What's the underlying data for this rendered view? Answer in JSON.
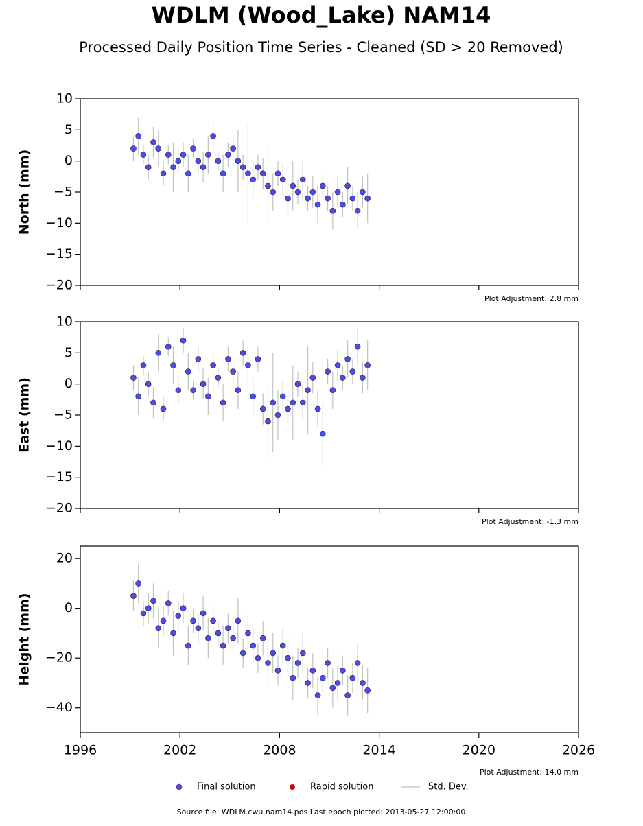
{
  "title": "WDLM (Wood_Lake) NAM14",
  "subtitle": "Processed Daily Position Time Series - Cleaned (SD > 20 Removed)",
  "legend": [
    {
      "name": "Final solution",
      "color": "#4b4bf0"
    },
    {
      "name": "Rapid solution",
      "color": "#dd0000"
    },
    {
      "name": "Std. Dev.",
      "color": "#cccccc"
    }
  ],
  "footer": "Source file: WDLM.cwu.nam14.pos  Last epoch plotted: 2013-05-27 12:00:00",
  "chart_data": [
    {
      "type": "scatter",
      "ylabel": "North (mm)",
      "annotation": "Plot Adjustment: 2.8 mm",
      "xlim": [
        1996,
        2026
      ],
      "ylim": [
        -20,
        10
      ],
      "yticks": [
        {
          "value": -20,
          "label": "−20"
        },
        {
          "value": -15,
          "label": "−15"
        },
        {
          "value": -10,
          "label": "−10"
        },
        {
          "value": -5,
          "label": "−5"
        },
        0,
        5,
        10
      ],
      "series": [
        {
          "name": "Final solution",
          "color": "#4b4bf0",
          "x": [
            1999.2,
            1999.5,
            1999.8,
            2000.1,
            2000.4,
            2000.7,
            2001.0,
            2001.3,
            2001.6,
            2001.9,
            2002.2,
            2002.5,
            2002.8,
            2003.1,
            2003.4,
            2003.7,
            2004.0,
            2004.3,
            2004.6,
            2004.9,
            2005.2,
            2005.5,
            2005.8,
            2006.1,
            2006.4,
            2006.7,
            2007.0,
            2007.3,
            2007.6,
            2007.9,
            2008.2,
            2008.5,
            2008.8,
            2009.1,
            2009.4,
            2009.7,
            2010.0,
            2010.3,
            2010.6,
            2010.9,
            2011.2,
            2011.5,
            2011.8,
            2012.1,
            2012.4,
            2012.7,
            2013.0,
            2013.3
          ],
          "values": [
            2,
            4,
            1,
            -1,
            3,
            2,
            -2,
            1,
            -1,
            0,
            1,
            -2,
            2,
            0,
            -1,
            1,
            4,
            0,
            -2,
            1,
            2,
            0,
            -1,
            -2,
            -3,
            -1,
            -2,
            -4,
            -5,
            -2,
            -3,
            -6,
            -4,
            -5,
            -3,
            -6,
            -5,
            -7,
            -4,
            -6,
            -8,
            -5,
            -7,
            -4,
            -6,
            -8,
            -5,
            -6
          ],
          "errors": [
            2,
            3,
            1.5,
            2,
            2.5,
            3,
            2,
            1.5,
            4,
            2,
            2,
            3,
            1.5,
            2,
            2.5,
            3,
            2,
            1.5,
            3,
            2,
            2,
            5,
            2,
            8,
            3,
            2,
            2.5,
            6,
            3,
            2,
            2.5,
            3,
            4,
            2,
            3,
            2,
            2.5,
            3,
            2,
            2,
            3,
            2.5,
            2,
            3,
            2,
            3,
            2.5,
            4
          ]
        }
      ]
    },
    {
      "type": "scatter",
      "ylabel": "East (mm)",
      "annotation": "Plot Adjustment: -1.3 mm",
      "xlim": [
        1996,
        2026
      ],
      "ylim": [
        -20,
        10
      ],
      "yticks": [
        {
          "value": -20,
          "label": "−20"
        },
        {
          "value": -15,
          "label": "−15"
        },
        {
          "value": -10,
          "label": "−10"
        },
        {
          "value": -5,
          "label": "−5"
        },
        0,
        5,
        10
      ],
      "series": [
        {
          "name": "Final solution",
          "color": "#4b4bf0",
          "x": [
            1999.2,
            1999.5,
            1999.8,
            2000.1,
            2000.4,
            2000.7,
            2001.0,
            2001.3,
            2001.6,
            2001.9,
            2002.2,
            2002.5,
            2002.8,
            2003.1,
            2003.4,
            2003.7,
            2004.0,
            2004.3,
            2004.6,
            2004.9,
            2005.2,
            2005.5,
            2005.8,
            2006.1,
            2006.4,
            2006.7,
            2007.0,
            2007.3,
            2007.6,
            2007.9,
            2008.2,
            2008.5,
            2008.8,
            2009.1,
            2009.4,
            2009.7,
            2010.0,
            2010.3,
            2010.6,
            2010.9,
            2011.2,
            2011.5,
            2011.8,
            2012.1,
            2012.4,
            2012.7,
            2013.0,
            2013.3
          ],
          "values": [
            1,
            -2,
            3,
            0,
            -3,
            5,
            -4,
            6,
            3,
            -1,
            7,
            2,
            -1,
            4,
            0,
            -2,
            3,
            1,
            -3,
            4,
            2,
            -1,
            5,
            3,
            -2,
            4,
            -4,
            -6,
            -3,
            -5,
            -2,
            -4,
            -3,
            0,
            -3,
            -1,
            1,
            -4,
            -8,
            2,
            -1,
            3,
            1,
            4,
            2,
            6,
            1,
            3
          ],
          "errors": [
            2,
            3,
            1.5,
            2,
            2.5,
            3,
            2,
            1.5,
            3,
            2,
            2,
            3,
            1.5,
            2,
            2.5,
            3,
            2,
            1.5,
            3,
            2,
            2,
            3,
            2,
            3,
            3,
            2,
            2.5,
            6,
            8,
            4,
            2.5,
            3,
            6,
            2,
            3,
            7,
            2.5,
            3,
            5,
            2,
            3,
            2.5,
            2,
            3,
            2,
            3,
            2.5,
            4
          ]
        }
      ]
    },
    {
      "type": "scatter",
      "ylabel": "Height (mm)",
      "annotation": "Plot Adjustment: 14.0 mm",
      "xlim": [
        1996,
        2026
      ],
      "ylim": [
        -50,
        25
      ],
      "xticks": [
        1996,
        2002,
        2008,
        2014,
        2020,
        2026
      ],
      "yticks": [
        {
          "value": -40,
          "label": "−40"
        },
        {
          "value": -20,
          "label": "−20"
        },
        0,
        20
      ],
      "series": [
        {
          "name": "Final solution",
          "color": "#4b4bf0",
          "x": [
            1999.2,
            1999.5,
            1999.8,
            2000.1,
            2000.4,
            2000.7,
            2001.0,
            2001.3,
            2001.6,
            2001.9,
            2002.2,
            2002.5,
            2002.8,
            2003.1,
            2003.4,
            2003.7,
            2004.0,
            2004.3,
            2004.6,
            2004.9,
            2005.2,
            2005.5,
            2005.8,
            2006.1,
            2006.4,
            2006.7,
            2007.0,
            2007.3,
            2007.6,
            2007.9,
            2008.2,
            2008.5,
            2008.8,
            2009.1,
            2009.4,
            2009.7,
            2010.0,
            2010.3,
            2010.6,
            2010.9,
            2011.2,
            2011.5,
            2011.8,
            2012.1,
            2012.4,
            2012.7,
            2013.0,
            2013.3
          ],
          "values": [
            5,
            10,
            -2,
            0,
            3,
            -8,
            -5,
            2,
            -10,
            -3,
            0,
            -15,
            -5,
            -8,
            -2,
            -12,
            -5,
            -10,
            -15,
            -8,
            -12,
            -5,
            -18,
            -10,
            -15,
            -20,
            -12,
            -22,
            -18,
            -25,
            -15,
            -20,
            -28,
            -22,
            -18,
            -30,
            -25,
            -35,
            -28,
            -22,
            -32,
            -30,
            -25,
            -35,
            -28,
            -22,
            -30,
            -33
          ],
          "errors": [
            6,
            8,
            5,
            6,
            7,
            8,
            6,
            5,
            9,
            6,
            6,
            8,
            5,
            6,
            7,
            8,
            6,
            5,
            8,
            6,
            6,
            9,
            6,
            8,
            7,
            6,
            7,
            10,
            8,
            6,
            7,
            8,
            9,
            6,
            8,
            6,
            7,
            8,
            6,
            6,
            8,
            7,
            6,
            8,
            6,
            8,
            7,
            9
          ]
        }
      ]
    }
  ]
}
